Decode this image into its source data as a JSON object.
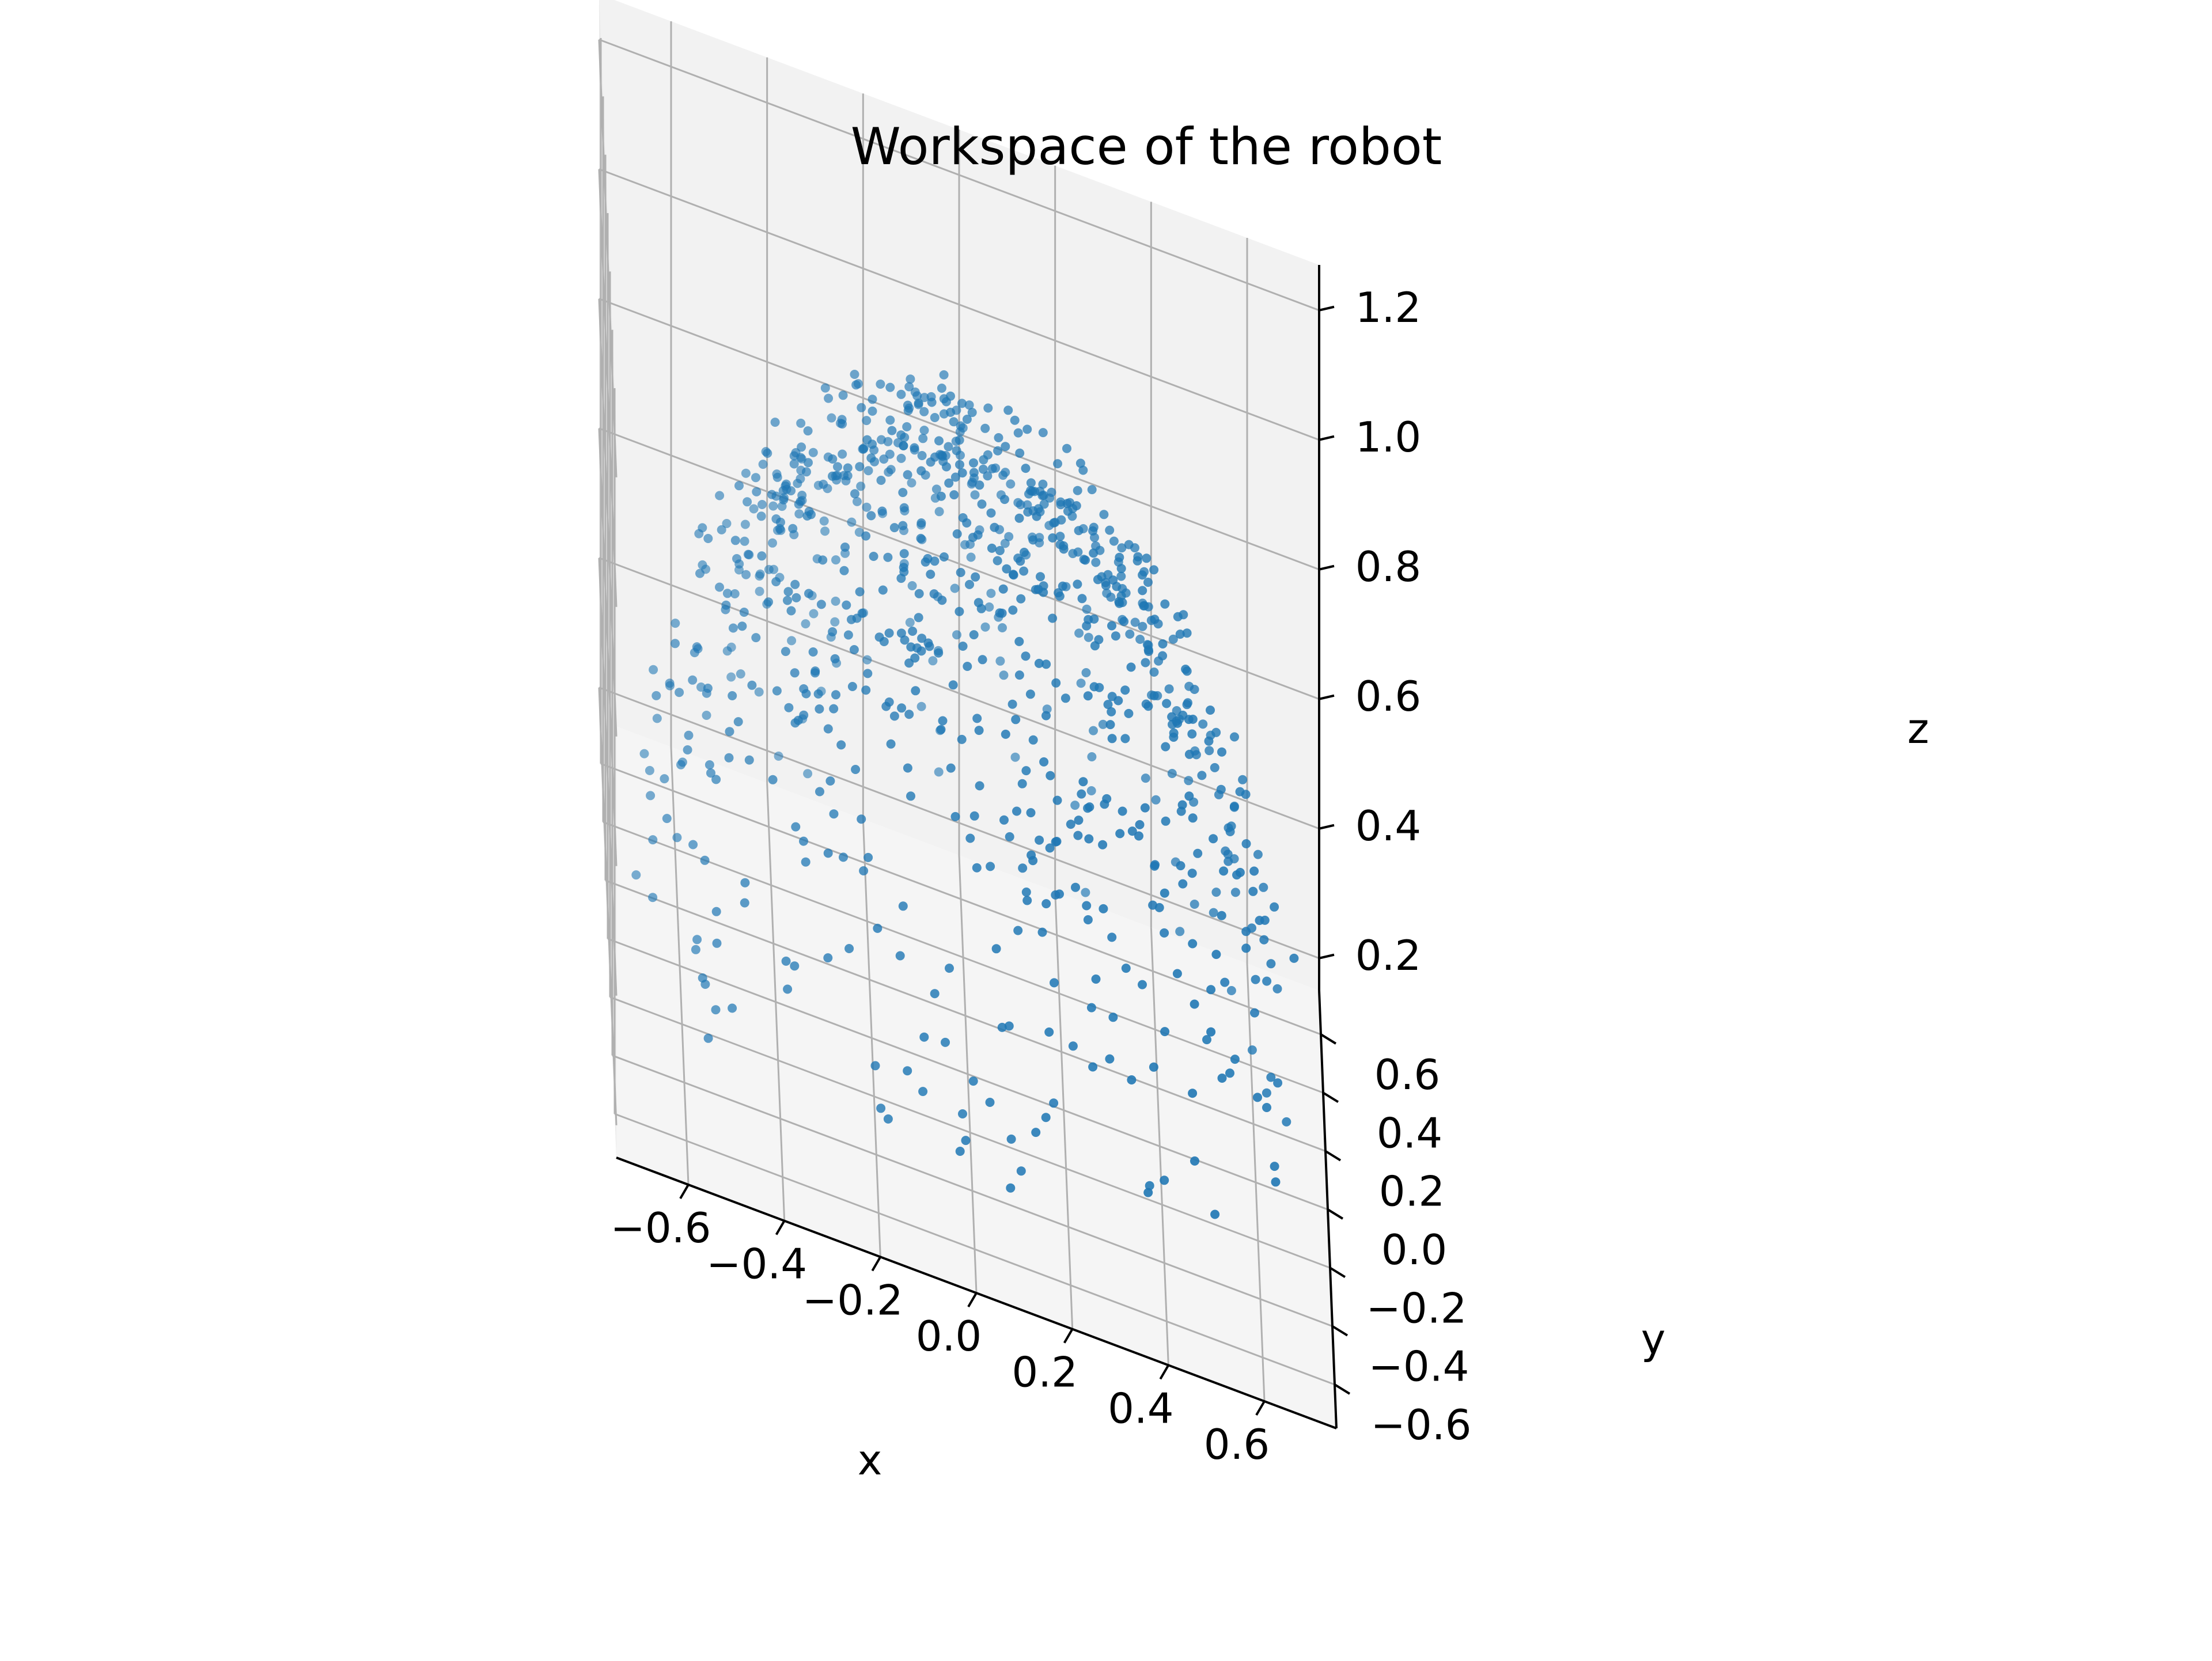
{
  "chart_data": {
    "type": "scatter",
    "projection": "3d",
    "title": "Workspace of the robot",
    "xlabel": "x",
    "ylabel": "y",
    "zlabel": "z",
    "xlim": [
      -0.75,
      0.75
    ],
    "ylim": [
      -0.75,
      0.75
    ],
    "zlim": [
      0.15,
      1.27
    ],
    "xticks": [
      "−0.6",
      "−0.4",
      "−0.2",
      "0.0",
      "0.2",
      "0.4",
      "0.6"
    ],
    "yticks": [
      "−0.6",
      "−0.4",
      "−0.2",
      "0.0",
      "0.2",
      "0.4",
      "0.6"
    ],
    "zticks": [
      "0.2",
      "0.4",
      "0.6",
      "0.8",
      "1.0",
      "1.2"
    ],
    "xtick_values": [
      -0.6,
      -0.4,
      -0.2,
      0.0,
      0.2,
      0.4,
      0.6
    ],
    "ytick_values": [
      -0.6,
      -0.4,
      -0.2,
      0.0,
      0.2,
      0.4,
      0.6
    ],
    "ztick_values": [
      0.2,
      0.4,
      0.6,
      0.8,
      1.0,
      1.2
    ],
    "grid": true,
    "marker_color": "#1f77b4",
    "pane_colors": [
      "#f2f2f2",
      "#ebebeb",
      "#f5f5f5"
    ],
    "series": [
      {
        "points_description_free": true,
        "distribution": {
          "shape": "upper hemisphere shell",
          "center": [
            0.0,
            0.0,
            0.2
          ],
          "radius_range": [
            0.62,
            0.72
          ],
          "count": 900
        }
      }
    ]
  }
}
